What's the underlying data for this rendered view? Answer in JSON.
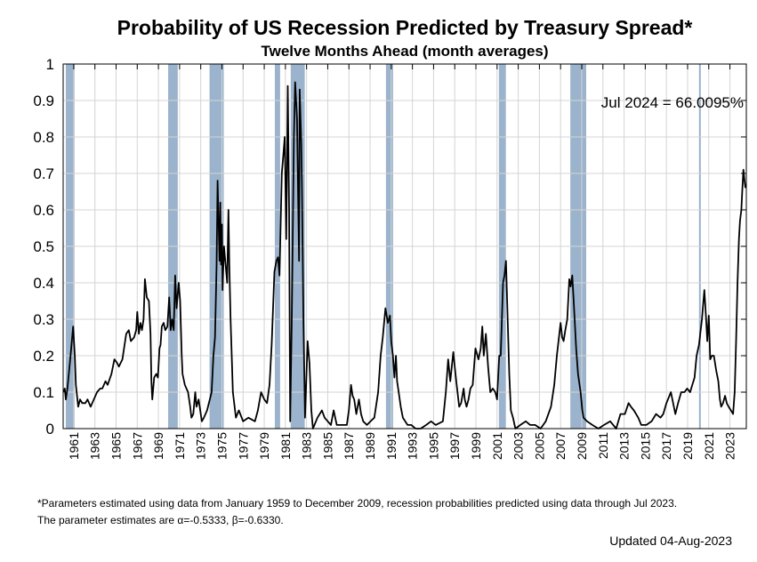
{
  "chart_data": {
    "type": "line",
    "title": "Probability of US Recession Predicted by Treasury Spread*",
    "subtitle": "Twelve Months Ahead (month averages)",
    "xlabel": "",
    "ylabel": "",
    "xlim": [
      1960.0,
      2024.55
    ],
    "ylim": [
      0,
      1
    ],
    "grid": true,
    "y_ticks": [
      "0",
      "0.1",
      "0.2",
      "0.3",
      "0.4",
      "0.5",
      "0.6",
      "0.7",
      "0.8",
      "0.9",
      "1"
    ],
    "x_ticks": [
      "1961",
      "1963",
      "1965",
      "1967",
      "1969",
      "1971",
      "1973",
      "1975",
      "1977",
      "1979",
      "1981",
      "1983",
      "1985",
      "1987",
      "1989",
      "1991",
      "1993",
      "1995",
      "1997",
      "1999",
      "2001",
      "2003",
      "2005",
      "2007",
      "2009",
      "2011",
      "2013",
      "2015",
      "2017",
      "2019",
      "2021",
      "2023"
    ],
    "annotation": "Jul 2024 = 66.0095%",
    "line_color": "#000000",
    "recession_color": "#9bb3cc",
    "recessions": [
      [
        1960.25,
        1961.08
      ],
      [
        1969.92,
        1970.83
      ],
      [
        1973.83,
        1975.17
      ],
      [
        1980.0,
        1980.5
      ],
      [
        1981.5,
        1982.83
      ],
      [
        1990.5,
        1991.17
      ],
      [
        2001.17,
        2001.83
      ],
      [
        2007.92,
        2009.42
      ],
      [
        2020.08,
        2020.25
      ]
    ],
    "series": [
      {
        "name": "Recession probability",
        "points": [
          [
            1960.02,
            0.1
          ],
          [
            1960.15,
            0.11
          ],
          [
            1960.25,
            0.08
          ],
          [
            1960.4,
            0.11
          ],
          [
            1960.7,
            0.2
          ],
          [
            1960.94,
            0.28
          ],
          [
            1961.1,
            0.2
          ],
          [
            1961.2,
            0.12
          ],
          [
            1961.42,
            0.06
          ],
          [
            1961.6,
            0.08
          ],
          [
            1961.8,
            0.07
          ],
          [
            1962.1,
            0.07
          ],
          [
            1962.3,
            0.08
          ],
          [
            1962.6,
            0.06
          ],
          [
            1962.9,
            0.08
          ],
          [
            1963.2,
            0.1
          ],
          [
            1963.5,
            0.11
          ],
          [
            1963.7,
            0.11
          ],
          [
            1964.0,
            0.13
          ],
          [
            1964.2,
            0.12
          ],
          [
            1964.56,
            0.15
          ],
          [
            1964.84,
            0.19
          ],
          [
            1965.1,
            0.18
          ],
          [
            1965.26,
            0.17
          ],
          [
            1965.6,
            0.19
          ],
          [
            1965.96,
            0.26
          ],
          [
            1966.2,
            0.27
          ],
          [
            1966.4,
            0.24
          ],
          [
            1966.7,
            0.25
          ],
          [
            1966.9,
            0.27
          ],
          [
            1967.0,
            0.32
          ],
          [
            1967.15,
            0.26
          ],
          [
            1967.3,
            0.29
          ],
          [
            1967.45,
            0.27
          ],
          [
            1967.6,
            0.3
          ],
          [
            1967.72,
            0.41
          ],
          [
            1967.9,
            0.36
          ],
          [
            1968.1,
            0.35
          ],
          [
            1968.25,
            0.26
          ],
          [
            1968.34,
            0.13
          ],
          [
            1968.42,
            0.08
          ],
          [
            1968.6,
            0.14
          ],
          [
            1968.8,
            0.15
          ],
          [
            1968.95,
            0.14
          ],
          [
            1969.1,
            0.22
          ],
          [
            1969.2,
            0.23
          ],
          [
            1969.32,
            0.28
          ],
          [
            1969.5,
            0.29
          ],
          [
            1969.65,
            0.27
          ],
          [
            1969.85,
            0.28
          ],
          [
            1970.02,
            0.36
          ],
          [
            1970.16,
            0.27
          ],
          [
            1970.3,
            0.3
          ],
          [
            1970.45,
            0.27
          ],
          [
            1970.58,
            0.42
          ],
          [
            1970.72,
            0.33
          ],
          [
            1970.92,
            0.4
          ],
          [
            1971.05,
            0.35
          ],
          [
            1971.2,
            0.2
          ],
          [
            1971.28,
            0.15
          ],
          [
            1971.5,
            0.12
          ],
          [
            1971.8,
            0.1
          ],
          [
            1972.0,
            0.06
          ],
          [
            1972.12,
            0.03
          ],
          [
            1972.3,
            0.04
          ],
          [
            1972.48,
            0.1
          ],
          [
            1972.6,
            0.06
          ],
          [
            1972.8,
            0.08
          ],
          [
            1973.1,
            0.02
          ],
          [
            1973.3,
            0.03
          ],
          [
            1973.6,
            0.05
          ],
          [
            1974.03,
            0.1
          ],
          [
            1974.2,
            0.2
          ],
          [
            1974.35,
            0.25
          ],
          [
            1974.5,
            0.45
          ],
          [
            1974.59,
            0.68
          ],
          [
            1974.7,
            0.55
          ],
          [
            1974.78,
            0.46
          ],
          [
            1974.85,
            0.62
          ],
          [
            1974.92,
            0.45
          ],
          [
            1975.0,
            0.56
          ],
          [
            1975.06,
            0.38
          ],
          [
            1975.2,
            0.5
          ],
          [
            1975.35,
            0.45
          ],
          [
            1975.5,
            0.4
          ],
          [
            1975.62,
            0.6
          ],
          [
            1975.7,
            0.45
          ],
          [
            1975.82,
            0.3
          ],
          [
            1976.04,
            0.1
          ],
          [
            1976.32,
            0.03
          ],
          [
            1976.6,
            0.05
          ],
          [
            1977.0,
            0.02
          ],
          [
            1977.5,
            0.03
          ],
          [
            1978.12,
            0.02
          ],
          [
            1978.4,
            0.05
          ],
          [
            1978.7,
            0.1
          ],
          [
            1979.0,
            0.08
          ],
          [
            1979.26,
            0.07
          ],
          [
            1979.5,
            0.12
          ],
          [
            1979.7,
            0.23
          ],
          [
            1979.96,
            0.43
          ],
          [
            1980.15,
            0.46
          ],
          [
            1980.3,
            0.47
          ],
          [
            1980.44,
            0.42
          ],
          [
            1980.66,
            0.7
          ],
          [
            1980.8,
            0.75
          ],
          [
            1980.94,
            0.8
          ],
          [
            1981.08,
            0.52
          ],
          [
            1981.22,
            0.94
          ],
          [
            1981.35,
            0.6
          ],
          [
            1981.45,
            0.02
          ],
          [
            1981.6,
            0.3
          ],
          [
            1981.8,
            0.8
          ],
          [
            1981.92,
            0.95
          ],
          [
            1982.1,
            0.85
          ],
          [
            1982.29,
            0.46
          ],
          [
            1982.35,
            0.93
          ],
          [
            1982.5,
            0.78
          ],
          [
            1982.57,
            0.65
          ],
          [
            1982.7,
            0.3
          ],
          [
            1982.85,
            0.03
          ],
          [
            1983.1,
            0.24
          ],
          [
            1983.27,
            0.18
          ],
          [
            1983.45,
            0.05
          ],
          [
            1983.6,
            0.0
          ],
          [
            1984.03,
            0.03
          ],
          [
            1984.45,
            0.05
          ],
          [
            1984.7,
            0.03
          ],
          [
            1985.0,
            0.02
          ],
          [
            1985.3,
            0.01
          ],
          [
            1985.56,
            0.05
          ],
          [
            1985.85,
            0.01
          ],
          [
            1986.3,
            0.01
          ],
          [
            1986.8,
            0.01
          ],
          [
            1987.0,
            0.05
          ],
          [
            1987.2,
            0.12
          ],
          [
            1987.35,
            0.09
          ],
          [
            1987.5,
            0.08
          ],
          [
            1987.7,
            0.04
          ],
          [
            1987.95,
            0.08
          ],
          [
            1988.15,
            0.04
          ],
          [
            1988.35,
            0.02
          ],
          [
            1988.7,
            0.01
          ],
          [
            1989.05,
            0.02
          ],
          [
            1989.4,
            0.03
          ],
          [
            1989.76,
            0.1
          ],
          [
            1990.0,
            0.2
          ],
          [
            1990.2,
            0.25
          ],
          [
            1990.45,
            0.33
          ],
          [
            1990.68,
            0.29
          ],
          [
            1990.88,
            0.31
          ],
          [
            1991.0,
            0.24
          ],
          [
            1991.16,
            0.2
          ],
          [
            1991.3,
            0.14
          ],
          [
            1991.44,
            0.2
          ],
          [
            1991.55,
            0.13
          ],
          [
            1991.7,
            0.1
          ],
          [
            1991.9,
            0.06
          ],
          [
            1992.1,
            0.03
          ],
          [
            1992.54,
            0.01
          ],
          [
            1992.9,
            0.01
          ],
          [
            1993.3,
            0.0
          ],
          [
            1993.78,
            0.0
          ],
          [
            1994.3,
            0.01
          ],
          [
            1994.76,
            0.02
          ],
          [
            1995.2,
            0.01
          ],
          [
            1995.88,
            0.02
          ],
          [
            1996.16,
            0.1
          ],
          [
            1996.38,
            0.19
          ],
          [
            1996.58,
            0.13
          ],
          [
            1996.86,
            0.21
          ],
          [
            1997.0,
            0.17
          ],
          [
            1997.14,
            0.13
          ],
          [
            1997.42,
            0.06
          ],
          [
            1997.6,
            0.07
          ],
          [
            1997.84,
            0.11
          ],
          [
            1997.95,
            0.08
          ],
          [
            1998.12,
            0.06
          ],
          [
            1998.3,
            0.08
          ],
          [
            1998.48,
            0.11
          ],
          [
            1998.7,
            0.12
          ],
          [
            1998.96,
            0.22
          ],
          [
            1999.24,
            0.19
          ],
          [
            1999.45,
            0.22
          ],
          [
            1999.6,
            0.28
          ],
          [
            1999.74,
            0.2
          ],
          [
            1999.94,
            0.26
          ],
          [
            2000.15,
            0.17
          ],
          [
            2000.36,
            0.1
          ],
          [
            2000.6,
            0.11
          ],
          [
            2000.83,
            0.1
          ],
          [
            2001.0,
            0.08
          ],
          [
            2001.2,
            0.2
          ],
          [
            2001.34,
            0.2
          ],
          [
            2001.56,
            0.4
          ],
          [
            2001.7,
            0.42
          ],
          [
            2001.84,
            0.46
          ],
          [
            2002.0,
            0.3
          ],
          [
            2002.15,
            0.15
          ],
          [
            2002.3,
            0.05
          ],
          [
            2002.5,
            0.03
          ],
          [
            2002.73,
            0.0
          ],
          [
            2003.2,
            0.01
          ],
          [
            2003.71,
            0.02
          ],
          [
            2004.13,
            0.01
          ],
          [
            2004.6,
            0.01
          ],
          [
            2005.11,
            0.0
          ],
          [
            2005.6,
            0.02
          ],
          [
            2006.09,
            0.06
          ],
          [
            2006.4,
            0.12
          ],
          [
            2006.65,
            0.2
          ],
          [
            2007.0,
            0.29
          ],
          [
            2007.15,
            0.25
          ],
          [
            2007.29,
            0.24
          ],
          [
            2007.45,
            0.27
          ],
          [
            2007.63,
            0.3
          ],
          [
            2007.82,
            0.41
          ],
          [
            2007.95,
            0.39
          ],
          [
            2008.1,
            0.42
          ],
          [
            2008.22,
            0.36
          ],
          [
            2008.33,
            0.3
          ],
          [
            2008.47,
            0.22
          ],
          [
            2008.65,
            0.15
          ],
          [
            2008.89,
            0.1
          ],
          [
            2009.05,
            0.05
          ],
          [
            2009.17,
            0.03
          ],
          [
            2009.5,
            0.02
          ],
          [
            2010.0,
            0.01
          ],
          [
            2010.57,
            0.0
          ],
          [
            2011.1,
            0.01
          ],
          [
            2011.69,
            0.02
          ],
          [
            2012.25,
            0.0
          ],
          [
            2012.66,
            0.04
          ],
          [
            2013.08,
            0.04
          ],
          [
            2013.42,
            0.07
          ],
          [
            2013.65,
            0.06
          ],
          [
            2013.93,
            0.05
          ],
          [
            2014.34,
            0.03
          ],
          [
            2014.62,
            0.01
          ],
          [
            2015.1,
            0.01
          ],
          [
            2015.6,
            0.02
          ],
          [
            2016.02,
            0.04
          ],
          [
            2016.44,
            0.03
          ],
          [
            2016.7,
            0.04
          ],
          [
            2017.0,
            0.07
          ],
          [
            2017.42,
            0.1
          ],
          [
            2017.84,
            0.04
          ],
          [
            2018.1,
            0.07
          ],
          [
            2018.4,
            0.1
          ],
          [
            2018.7,
            0.1
          ],
          [
            2018.96,
            0.11
          ],
          [
            2019.24,
            0.1
          ],
          [
            2019.45,
            0.12
          ],
          [
            2019.66,
            0.14
          ],
          [
            2019.85,
            0.2
          ],
          [
            2020.08,
            0.23
          ],
          [
            2020.36,
            0.3
          ],
          [
            2020.58,
            0.38
          ],
          [
            2020.75,
            0.3
          ],
          [
            2020.86,
            0.24
          ],
          [
            2021.0,
            0.31
          ],
          [
            2021.14,
            0.19
          ],
          [
            2021.3,
            0.2
          ],
          [
            2021.48,
            0.2
          ],
          [
            2021.7,
            0.16
          ],
          [
            2021.9,
            0.13
          ],
          [
            2022.05,
            0.08
          ],
          [
            2022.17,
            0.06
          ],
          [
            2022.35,
            0.07
          ],
          [
            2022.54,
            0.09
          ],
          [
            2022.7,
            0.07
          ],
          [
            2022.88,
            0.06
          ],
          [
            2023.1,
            0.05
          ],
          [
            2023.3,
            0.04
          ],
          [
            2023.45,
            0.1
          ],
          [
            2023.58,
            0.24
          ],
          [
            2023.72,
            0.4
          ],
          [
            2023.85,
            0.52
          ],
          [
            2023.95,
            0.57
          ],
          [
            2024.08,
            0.6
          ],
          [
            2024.18,
            0.66
          ],
          [
            2024.27,
            0.71
          ],
          [
            2024.38,
            0.68
          ],
          [
            2024.47,
            0.66
          ]
        ]
      }
    ],
    "footnote_lines": [
      "*Parameters estimated using data from January 1959 to December 2009, recession probabilities predicted using data through Jul 2023.",
      "The parameter estimates are α=-0.5333, β=-0.6330."
    ],
    "updated": "Updated 04-Aug-2023"
  }
}
